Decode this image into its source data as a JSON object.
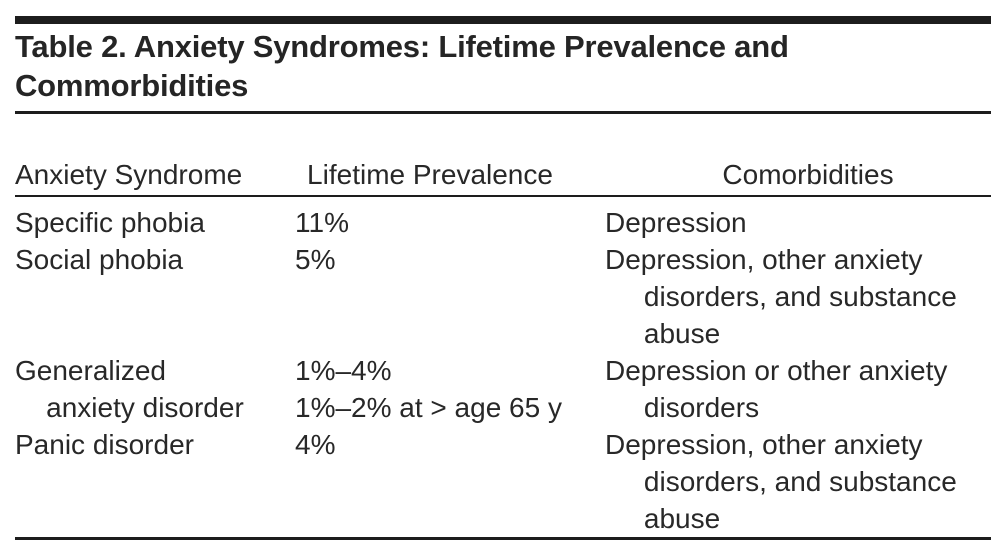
{
  "table": {
    "title": "Table 2. Anxiety Syndromes: Lifetime Prevalence and Commorbidities",
    "columns": {
      "syndrome": "Anxiety Syndrome",
      "prevalence": "Lifetime Prevalence",
      "comorbidities": "Comorbidities"
    },
    "rows": [
      {
        "syndrome": "Specific phobia",
        "prevalence": "11%",
        "comorbidities": "Depression"
      },
      {
        "syndrome": "Social phobia",
        "prevalence": "5%",
        "comorbidities": "Depression, other anxiety\n     disorders, and substance\n     abuse"
      },
      {
        "syndrome": "Generalized\n    anxiety disorder",
        "prevalence": "1%–4%\n1%–2% at > age 65 y",
        "comorbidities": "Depression or other anxiety\n     disorders"
      },
      {
        "syndrome": "Panic disorder",
        "prevalence": "4%",
        "comorbidities": "Depression, other anxiety\n     disorders, and substance\n     abuse"
      }
    ]
  },
  "colors": {
    "text": "#282828",
    "rule": "#1d1d1d",
    "background": "#ffffff"
  }
}
